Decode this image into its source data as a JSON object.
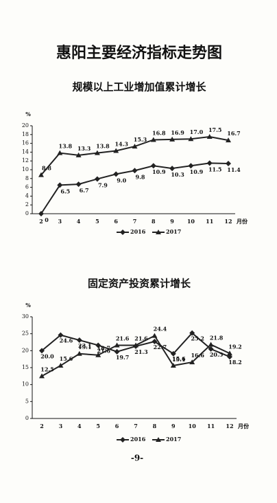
{
  "page_title": "惠阳主要经济指标走势图",
  "page_number": "-9-",
  "chart_data": [
    {
      "type": "line",
      "title": "规模以上工业增加值累计增长",
      "y_unit": "%",
      "x_unit": "月份",
      "categories": [
        "2",
        "3",
        "4",
        "5",
        "6",
        "7",
        "8",
        "9",
        "10",
        "11",
        "12"
      ],
      "ylim": [
        0,
        20
      ],
      "yticks": [
        0,
        2,
        4,
        6,
        8,
        10,
        12,
        14,
        16,
        18,
        20
      ],
      "grid": false,
      "series": [
        {
          "name": "2016",
          "color": "#222222",
          "marker": "diamond",
          "values": [
            0,
            6.5,
            6.7,
            7.9,
            9.0,
            9.8,
            10.9,
            10.3,
            10.9,
            11.5,
            11.4
          ],
          "value_labels": [
            "0",
            "6.5",
            "6.7",
            "7.9",
            "9.0",
            "9.8",
            "10.9",
            "10.3",
            "10.9",
            "11.5",
            "11.4"
          ]
        },
        {
          "name": "2017",
          "color": "#222222",
          "marker": "triangle",
          "values": [
            8.8,
            13.8,
            13.3,
            13.8,
            14.3,
            15.3,
            16.8,
            16.9,
            17.0,
            17.5,
            16.7
          ],
          "value_labels": [
            "8.8",
            "13.8",
            "13.3",
            "13.8",
            "14.3",
            "15.3",
            "16.8",
            "16.9",
            "17.0",
            "17.5",
            "16.7"
          ]
        }
      ]
    },
    {
      "type": "line",
      "title": "固定资产投资累计增长",
      "y_unit": "%",
      "x_unit": "月份",
      "categories": [
        "2",
        "3",
        "4",
        "5",
        "6",
        "7",
        "8",
        "9",
        "10",
        "11",
        "12"
      ],
      "ylim": [
        0,
        30
      ],
      "yticks": [
        0,
        5,
        10,
        15,
        20,
        25,
        30
      ],
      "grid": false,
      "series": [
        {
          "name": "2016",
          "color": "#222222",
          "marker": "diamond",
          "values": [
            20.0,
            24.6,
            23.1,
            21.6,
            19.7,
            21.3,
            22.7,
            19.1,
            25.2,
            20.5,
            18.2
          ],
          "value_labels": [
            "20.0",
            "24.6",
            "23.1",
            "21.6",
            "19.7",
            "21.3",
            "22.7",
            "19.1",
            "25.2",
            "20.5",
            "18.2"
          ]
        },
        {
          "name": "2017",
          "color": "#222222",
          "marker": "triangle",
          "values": [
            12.5,
            15.6,
            19.1,
            18.7,
            21.6,
            21.6,
            24.4,
            15.6,
            16.6,
            21.8,
            19.2
          ],
          "value_labels": [
            "12.5",
            "15.6",
            "19.1",
            "18.7",
            "21.6",
            "21.6",
            "24.4",
            "15.6",
            "16.6",
            "21.8",
            "19.2"
          ]
        }
      ]
    }
  ]
}
